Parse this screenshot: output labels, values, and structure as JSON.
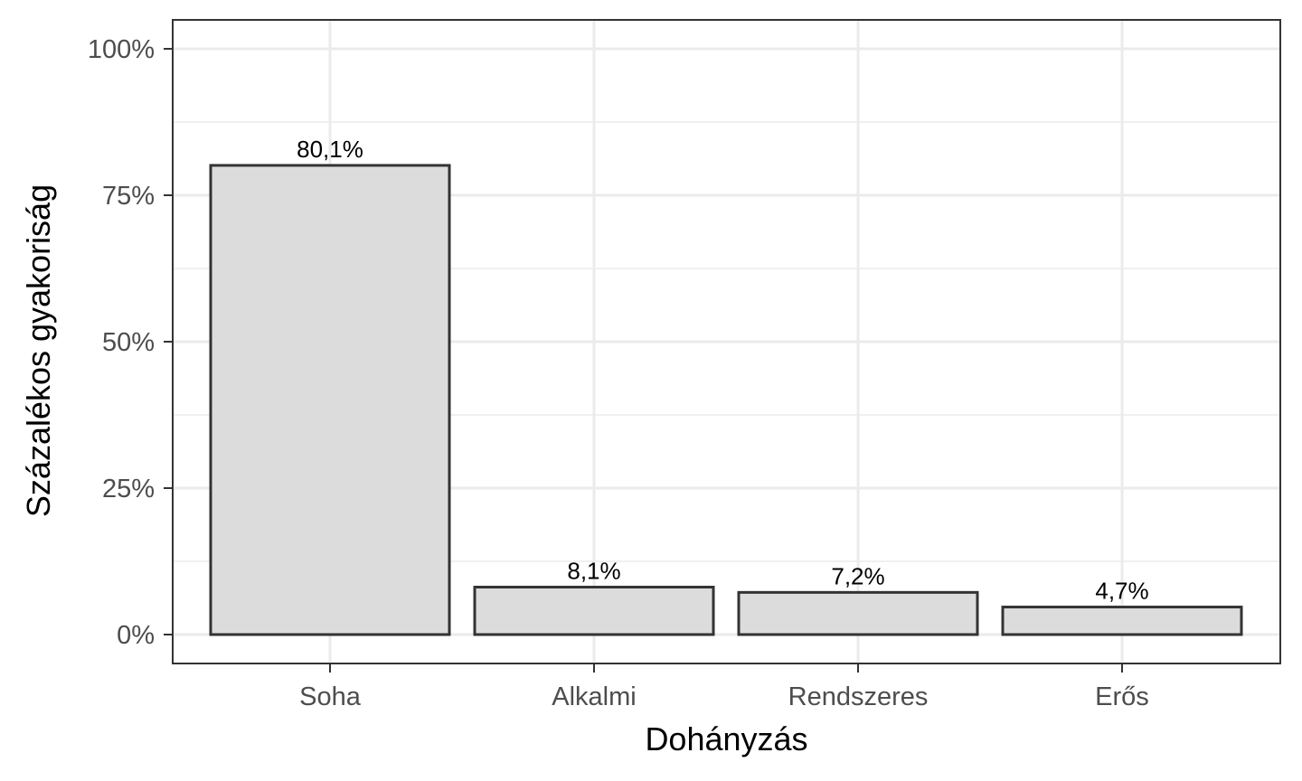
{
  "chart_data": {
    "type": "bar",
    "categories": [
      "Soha",
      "Alkalmi",
      "Rendszeres",
      "Erős"
    ],
    "values": [
      80.1,
      8.1,
      7.2,
      4.7
    ],
    "data_labels": [
      "80,1%",
      "8,1%",
      "7,2%",
      "4,7%"
    ],
    "xlabel": "Dohányzás",
    "ylabel": "Százalékos gyakoriság",
    "ylim": [
      0,
      100
    ],
    "yticks": [
      0,
      25,
      50,
      75,
      100
    ],
    "ytick_labels": [
      "0%",
      "25%",
      "50%",
      "75%",
      "100%"
    ],
    "grid": true,
    "legend": "none",
    "colors": {
      "bar_fill": "#dcdcdc",
      "bar_stroke": "#333333",
      "grid": "#ebebeb",
      "panel_border": "#333333",
      "tick_text": "#4d4d4d"
    }
  }
}
